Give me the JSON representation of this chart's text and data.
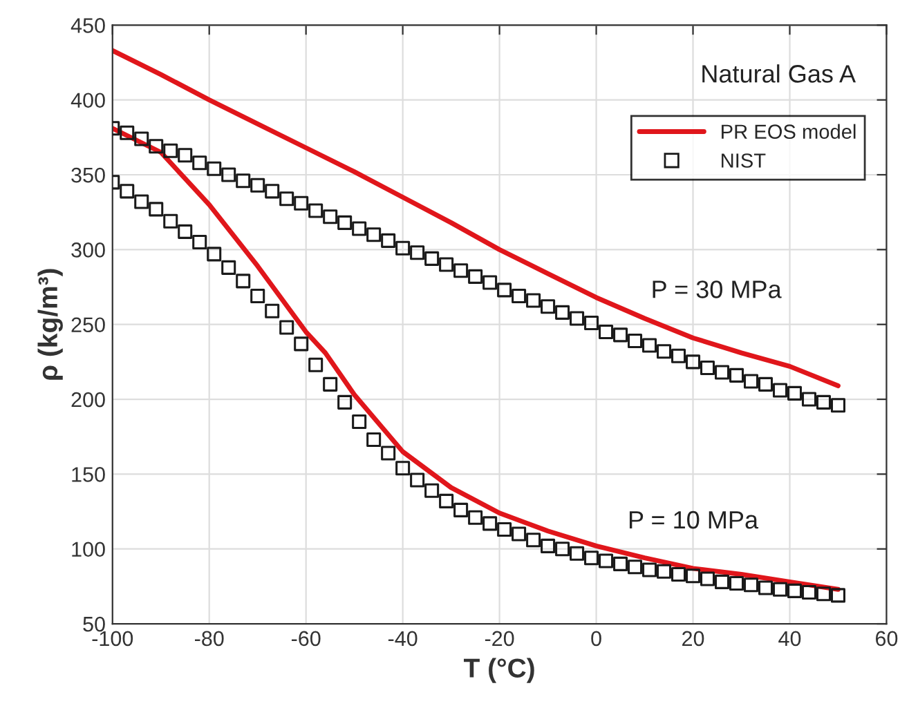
{
  "chart_data": {
    "type": "line",
    "xlabel": "T (°C)",
    "ylabel": "ρ (kg/m³)",
    "xlim": [
      -100,
      60
    ],
    "xticks": [
      -100,
      -80,
      -60,
      -40,
      -20,
      0,
      20,
      40,
      60
    ],
    "ylim": [
      50,
      450
    ],
    "yticks": [
      50,
      100,
      150,
      200,
      250,
      300,
      350,
      400,
      450
    ],
    "grid": true,
    "legend": "top right",
    "annotations": [
      "Natural Gas A",
      "P = 30 MPa",
      "P = 10 MPa"
    ],
    "series": [
      {
        "name": "PR EOS model",
        "color": "#e0161b",
        "marker": "none",
        "line_style": "solid",
        "x": [
          -100,
          -90,
          -80,
          -70,
          -60,
          -50,
          -40,
          -30,
          -20,
          -10,
          0,
          10,
          20,
          30,
          40,
          50
        ],
        "values": [
          433,
          417,
          400,
          384,
          368,
          352,
          335,
          318,
          300,
          284,
          268,
          254,
          241,
          231,
          222,
          209
        ]
      },
      {
        "name": "NIST",
        "type": "scatter",
        "color": "#1a1a1a",
        "marker": "square",
        "x": [
          -100,
          -97,
          -94,
          -91,
          -88,
          -85,
          -82,
          -79,
          -76,
          -73,
          -70,
          -67,
          -64,
          -61,
          -58,
          -55,
          -52,
          -49,
          -46,
          -43,
          -40,
          -37,
          -34,
          -31,
          -28,
          -25,
          -22,
          -19,
          -16,
          -13,
          -10,
          -7,
          -4,
          -1,
          2,
          5,
          8,
          11,
          14,
          17,
          20,
          23,
          26,
          29,
          32,
          35,
          38,
          41,
          44,
          47,
          50
        ],
        "values": [
          381,
          378,
          374,
          369,
          366,
          363,
          358,
          354,
          350,
          346,
          343,
          339,
          334,
          331,
          326,
          322,
          318,
          314,
          310,
          306,
          301,
          298,
          294,
          290,
          286,
          282,
          278,
          273,
          269,
          266,
          262,
          258,
          254,
          251,
          245,
          243,
          239,
          236,
          232,
          229,
          225,
          221,
          218,
          216,
          212,
          210,
          206,
          204,
          200,
          198,
          196
        ]
      },
      {
        "color": "#e0161b",
        "marker": "none",
        "line_style": "solid",
        "x": [
          -100,
          -90,
          -80,
          -70,
          -60,
          -56,
          -50,
          -40,
          -30,
          -20,
          -10,
          0,
          10,
          20,
          30,
          40,
          50
        ],
        "values": [
          381,
          365,
          330,
          289,
          245,
          231,
          203,
          165,
          141,
          124,
          112,
          102,
          94,
          87,
          83,
          78,
          73
        ]
      },
      {
        "type": "scatter",
        "color": "#1a1a1a",
        "marker": "square",
        "x": [
          -100,
          -97,
          -94,
          -91,
          -88,
          -85,
          -82,
          -79,
          -76,
          -73,
          -70,
          -67,
          -64,
          -61,
          -58,
          -55,
          -52,
          -49,
          -46,
          -43,
          -40,
          -37,
          -34,
          -31,
          -28,
          -25,
          -22,
          -19,
          -16,
          -13,
          -10,
          -7,
          -4,
          -1,
          2,
          5,
          8,
          11,
          14,
          17,
          20,
          23,
          26,
          29,
          32,
          35,
          38,
          41,
          44,
          47,
          50
        ],
        "values": [
          345,
          339,
          332,
          327,
          319,
          312,
          305,
          297,
          288,
          279,
          269,
          259,
          248,
          237,
          223,
          210,
          198,
          185,
          173,
          164,
          154,
          146,
          139,
          132,
          126,
          121,
          117,
          113,
          110,
          106,
          102,
          100,
          97,
          94,
          92,
          90,
          88,
          86,
          85,
          83,
          82,
          80,
          78,
          77,
          76,
          74,
          73,
          72,
          71,
          70,
          69
        ]
      }
    ]
  }
}
